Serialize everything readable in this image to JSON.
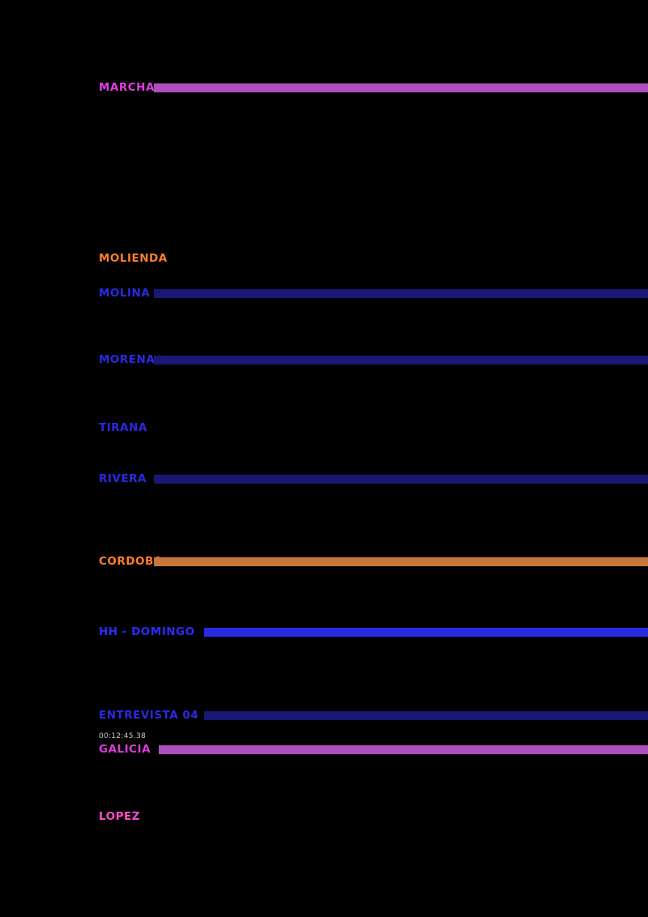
{
  "page": {
    "background_color": "#000000"
  },
  "colors": {
    "magenta_label": "#E23CE2",
    "magenta_bar": "#AE4FC0",
    "orange_label": "#FF7F2A",
    "orange_bar": "#C8763C",
    "blue_label": "#2929E6",
    "blue_bright_label": "#2B2BFF",
    "navy_bar": "#191975",
    "blue_bright_bar": "#2A2AE0",
    "pink_label": "#FF4FC8",
    "gray_small_label": "#C8C8C8"
  },
  "rows": [
    {
      "label": "MARCHA",
      "label_color": "#E23CE2",
      "bar": true,
      "bar_color": "#AE4FC0"
    },
    {
      "label": "MOLIENDA",
      "label_color": "#FF7F2A",
      "bar": false,
      "bar_color": null
    },
    {
      "label": "MOLINA",
      "label_color": "#2929E6",
      "bar": true,
      "bar_color": "#191975"
    },
    {
      "label": "MORENA",
      "label_color": "#2929E6",
      "bar": true,
      "bar_color": "#191975"
    },
    {
      "label": "TIRANA",
      "label_color": "#2929E6",
      "bar": false,
      "bar_color": null
    },
    {
      "label": "RIVERA",
      "label_color": "#2929E6",
      "bar": true,
      "bar_color": "#191975"
    },
    {
      "label": "CORDOBA",
      "label_color": "#FF7F2A",
      "bar": true,
      "bar_color": "#C8763C"
    },
    {
      "label": "HH - DOMINGO",
      "label_color": "#2B2BFF",
      "bar": true,
      "bar_color": "#2A2AE0"
    },
    {
      "label": "ENTREVISTA 04",
      "label_color": "#2929E6",
      "bar": true,
      "bar_color": "#191975"
    },
    {
      "label": "GALICIA",
      "label_color": "#D83CD8",
      "bar": true,
      "bar_color": "#AE4FC0",
      "small_label": "00:12:45.38",
      "small_label_color": "#C8C8C8"
    },
    {
      "label": "LOPEZ",
      "label_color": "#FF4FC8",
      "bar": false,
      "bar_color": null
    }
  ]
}
